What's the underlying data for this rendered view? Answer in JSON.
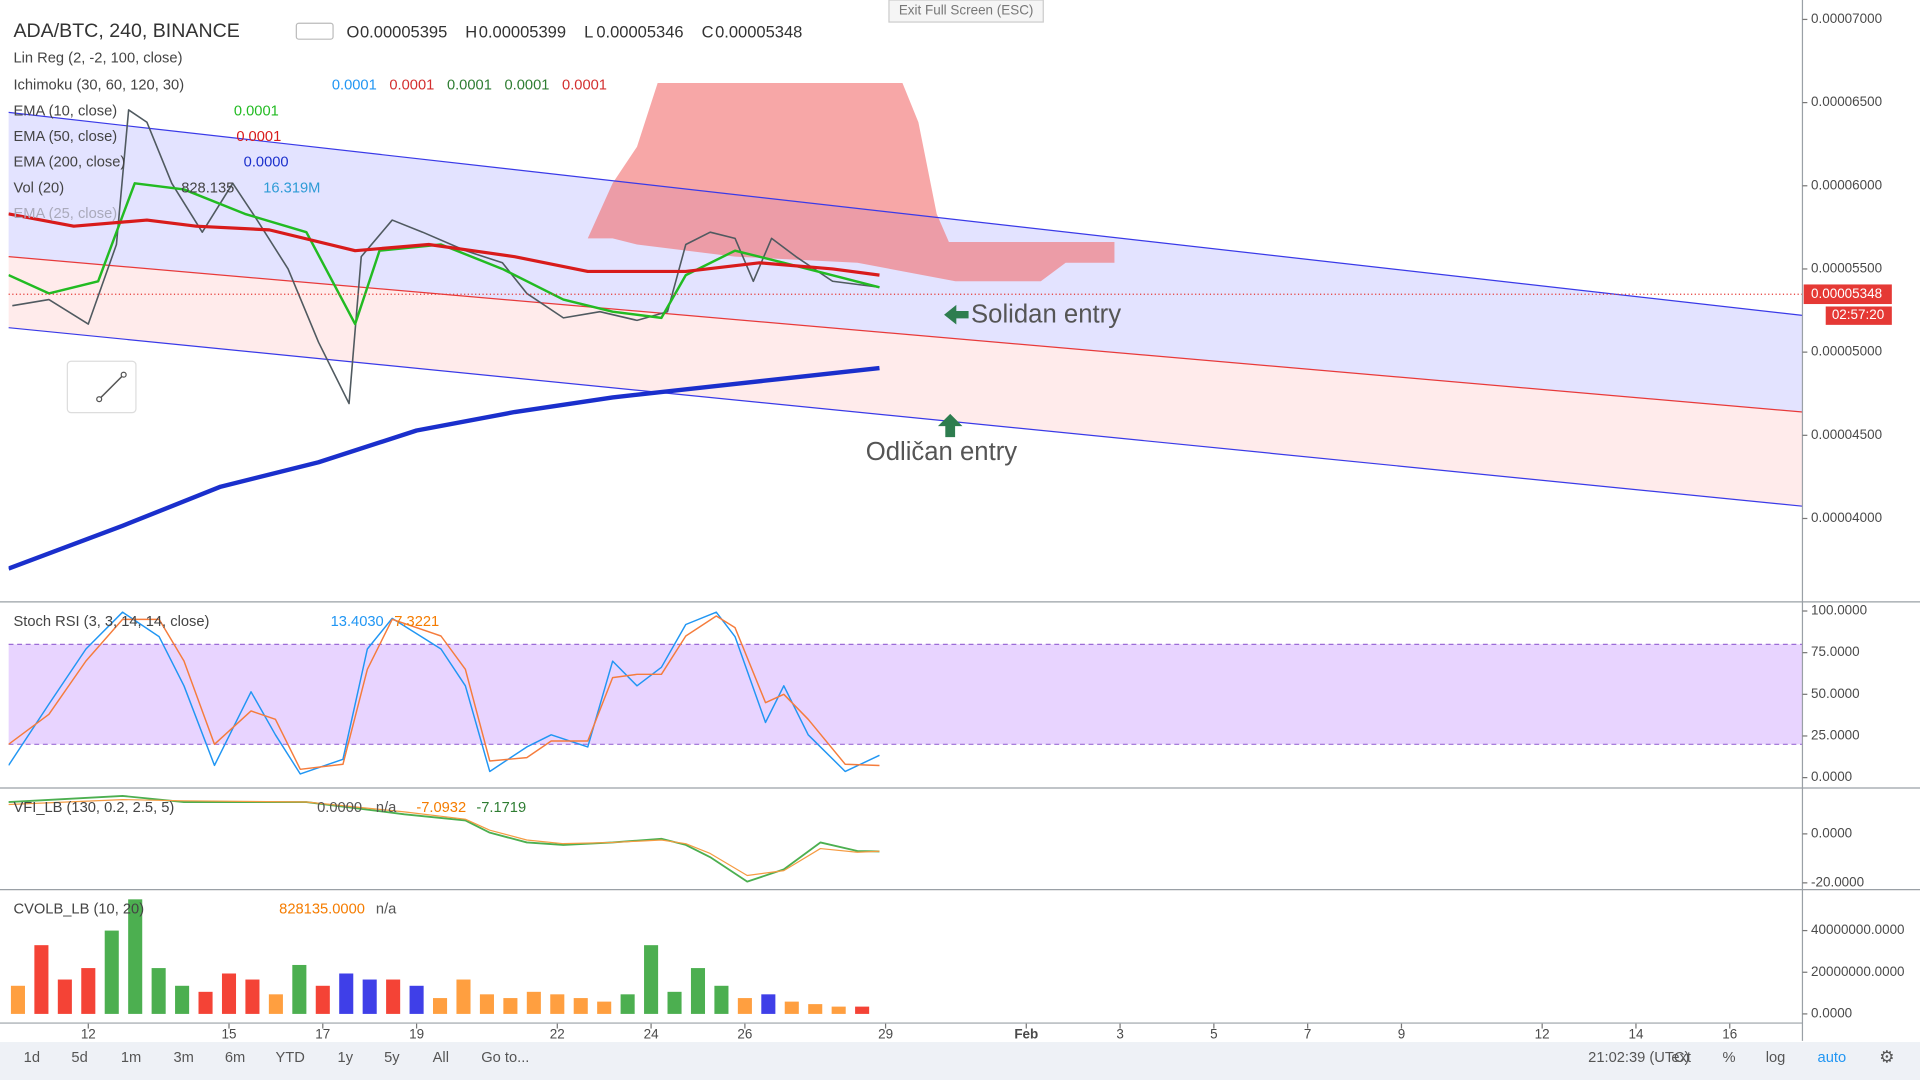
{
  "header": {
    "exit_fullscreen": "Exit Full Screen (ESC)"
  },
  "toolbar": {
    "periods": [
      "1d",
      "5d",
      "1m",
      "3m",
      "6m",
      "YTD",
      "1y",
      "5y",
      "All"
    ],
    "goto": "Go to...",
    "clock": "21:02:39 (UTC)",
    "options": [
      "ext",
      "%",
      "log",
      "auto"
    ]
  },
  "chart_data": [
    {
      "type": "line",
      "title": "ADA/BTC, 240, BINANCE",
      "ohlc": [
        {
          "key": "O",
          "value": "0.00005395"
        },
        {
          "key": "H",
          "value": "0.00005399"
        },
        {
          "key": "L",
          "value": "0.00005346"
        },
        {
          "key": "C",
          "value": "0.00005348"
        }
      ],
      "xlim": [
        10.3,
        48.55
      ],
      "xticks": [
        12,
        15,
        17,
        19,
        22,
        24,
        26,
        29,
        {
          "value": 32,
          "label": "Feb"
        },
        {
          "value": 34,
          "label": "3"
        },
        {
          "value": 36,
          "label": "5"
        },
        {
          "value": 38,
          "label": "7"
        },
        {
          "value": 40,
          "label": "9"
        },
        {
          "value": 43,
          "label": "12"
        },
        {
          "value": 45,
          "label": "14"
        },
        {
          "value": 47,
          "label": "16"
        }
      ],
      "ylim": [
        3.51e-05,
        7.08e-05
      ],
      "yticks": [
        {
          "value": 7e-05,
          "label": "0.00007000"
        },
        {
          "value": 6.5e-05,
          "label": "0.00006500"
        },
        {
          "value": 6e-05,
          "label": "0.00006000"
        },
        {
          "value": 5.5e-05,
          "label": "0.00005500"
        },
        {
          "value": 5e-05,
          "label": "0.00005000"
        },
        {
          "value": 4.5e-05,
          "label": "0.00004500"
        },
        {
          "value": 4e-05,
          "label": "0.00004000"
        }
      ],
      "grid": false,
      "lin_reg": {
        "name": "Lin Reg (2, -2, 100, close)",
        "upper": {
          "x": [
            10.3,
            48.55
          ],
          "values": [
            6.441e-05,
            5.221e-05
          ],
          "color": "#3a3ae8"
        },
        "middle": {
          "x": [
            10.3,
            48.55
          ],
          "values": [
            5.574e-05,
            4.64e-05
          ],
          "color": "#e83a3a"
        },
        "lower": {
          "x": [
            10.3,
            48.55
          ],
          "values": [
            5.147e-05,
            4.074e-05
          ],
          "color": "#3a3ae8"
        }
      },
      "ichimoku": {
        "name": "Ichimoku (30, 60, 120, 30)",
        "legend_values": [
          "0.0001",
          "0.0001",
          "0.0001",
          "0.0001",
          "0.0001"
        ],
        "legend_colors": [
          "#2196f3",
          "#d32f2f",
          "#2e7d32",
          "#2e7d32",
          "#d32f2f"
        ],
        "cloud_top": {
          "x": [
            22.65,
            23.18,
            23.7,
            24.14,
            29.36,
            29.7,
            30.09,
            30.35,
            33.88
          ],
          "values": [
            5.684e-05,
            6.015e-05,
            6.235e-05,
            6.618e-05,
            6.618e-05,
            6.382e-05,
            5.831e-05,
            5.662e-05,
            5.662e-05
          ]
        },
        "cloud_bottom": {
          "x": [
            22.65,
            23.18,
            23.7,
            25.79,
            28.4,
            30.49,
            32.31,
            32.84,
            33.88
          ],
          "values": [
            5.684e-05,
            5.684e-05,
            5.647e-05,
            5.574e-05,
            5.537e-05,
            5.426e-05,
            5.426e-05,
            5.537e-05,
            5.537e-05
          ]
        },
        "color": "#f26d6d"
      },
      "series": [
        {
          "color": "#505a60",
          "width": 1.3,
          "x": [
            10.38,
            11.16,
            12,
            12.6,
            12.86,
            13.25,
            13.78,
            14.43,
            15.08,
            15.6,
            16.26,
            16.91,
            17.56,
            17.82,
            18.48,
            19.13,
            20.04,
            20.83,
            21.35,
            22.13,
            22.91,
            23.7,
            24.35,
            24.74,
            25.26,
            25.79,
            26.18,
            26.57,
            27.09,
            27.87,
            28.87
          ],
          "values": [
            5.279e-05,
            5.316e-05,
            5.169e-05,
            5.647e-05,
            6.456e-05,
            6.382e-05,
            6.015e-05,
            5.721e-05,
            6.015e-05,
            5.794e-05,
            5.5e-05,
            5.059e-05,
            4.691e-05,
            5.574e-05,
            5.794e-05,
            5.721e-05,
            5.61e-05,
            5.537e-05,
            5.353e-05,
            5.206e-05,
            5.243e-05,
            5.191e-05,
            5.243e-05,
            5.647e-05,
            5.721e-05,
            5.684e-05,
            5.426e-05,
            5.684e-05,
            5.574e-05,
            5.426e-05,
            5.39e-05
          ]
        },
        {
          "name": "EMA (10, close)",
          "legend_value": "0.0001",
          "color": "#22bb22",
          "width": 2,
          "x": [
            10.3,
            11.16,
            12.21,
            12.99,
            14.04,
            15.34,
            16.65,
            17.69,
            18.21,
            19.52,
            20.83,
            22.13,
            23.18,
            24.22,
            24.74,
            25.79,
            26.83,
            28.87
          ],
          "values": [
            5.463e-05,
            5.353e-05,
            5.426e-05,
            6.015e-05,
            5.978e-05,
            5.831e-05,
            5.721e-05,
            5.169e-05,
            5.61e-05,
            5.647e-05,
            5.5e-05,
            5.316e-05,
            5.243e-05,
            5.206e-05,
            5.463e-05,
            5.61e-05,
            5.537e-05,
            5.39e-05
          ]
        },
        {
          "name": "EMA (50, close)",
          "legend_value": "0.0001",
          "color": "#d81b1b",
          "width": 2.6,
          "x": [
            10.3,
            11.69,
            13.25,
            14.3,
            15.86,
            17.69,
            19.26,
            21.09,
            22.65,
            24.74,
            26.31,
            27.87,
            28.87
          ],
          "values": [
            5.831e-05,
            5.757e-05,
            5.794e-05,
            5.757e-05,
            5.735e-05,
            5.61e-05,
            5.647e-05,
            5.574e-05,
            5.485e-05,
            5.485e-05,
            5.537e-05,
            5.5e-05,
            5.463e-05
          ]
        },
        {
          "name": "EMA (200, close)",
          "legend_value": "0.0000",
          "color": "#1a2fcc",
          "width": 3.6,
          "x": [
            10.3,
            12.73,
            14.82,
            16.91,
            19,
            21.09,
            23.18,
            25.79,
            28.87
          ],
          "values": [
            3.699e-05,
            3.956e-05,
            4.191e-05,
            4.338e-05,
            4.529e-05,
            4.64e-05,
            4.728e-05,
            4.809e-05,
            4.904e-05
          ]
        }
      ],
      "vol": {
        "name": "Vol (20)",
        "legend_values": [
          "828.135",
          "16.319M"
        ]
      },
      "faded_legend": "EMA (25, close)",
      "last_price": {
        "value": 5.348e-05,
        "label": "0.00005348"
      },
      "countdown": "02:57:20",
      "annotations": [
        "Solidan entry",
        "Odličan entry"
      ]
    },
    {
      "type": "line",
      "title": "Stoch RSI (3, 3, 14, 14, close)",
      "legend_values": [
        "13.4030",
        "7.3221"
      ],
      "xlim": [
        10.3,
        48.55
      ],
      "ylim": [
        -5.1,
        104.4
      ],
      "yticks": [
        {
          "value": 100,
          "label": "100.0000"
        },
        {
          "value": 75,
          "label": "75.0000"
        },
        {
          "value": 50,
          "label": "50.0000"
        },
        {
          "value": 25,
          "label": "25.0000"
        },
        {
          "value": 0,
          "label": "0.0000"
        }
      ],
      "band": [
        20,
        80
      ],
      "band_color": "#d9b8ff",
      "series": [
        {
          "color": "#2196f3",
          "width": 1.2,
          "x": [
            10.3,
            11.16,
            11.95,
            12.73,
            13.51,
            14.04,
            14.69,
            15.47,
            15.99,
            16.52,
            17.43,
            17.95,
            18.48,
            19.52,
            20.04,
            20.56,
            21.35,
            21.87,
            22.65,
            23.18,
            23.7,
            24.22,
            24.74,
            25.39,
            25.79,
            26.44,
            26.83,
            27.35,
            28.14,
            28.87
          ],
          "values": [
            7.35,
            44.1,
            77.2,
            99.3,
            84.6,
            55.1,
            7.35,
            51.5,
            25.7,
            2.2,
            11,
            77.2,
            95.6,
            77.2,
            55.1,
            3.7,
            18.4,
            25.7,
            18.4,
            69.9,
            55.1,
            66.2,
            91.9,
            99.3,
            84.6,
            33.1,
            55.1,
            25.7,
            3.7,
            13.4
          ]
        },
        {
          "color": "#f57c3c",
          "width": 1.2,
          "x": [
            10.3,
            11.16,
            11.95,
            12.73,
            13.51,
            14.04,
            14.69,
            15.47,
            15.99,
            16.52,
            17.43,
            17.95,
            18.48,
            19.52,
            20.04,
            20.56,
            21.35,
            21.87,
            22.65,
            23.18,
            23.7,
            24.22,
            24.74,
            25.39,
            25.79,
            26.44,
            26.83,
            27.35,
            28.14,
            28.87
          ],
          "values": [
            20,
            38,
            70,
            95,
            95,
            70,
            20,
            40,
            35,
            5,
            8,
            65,
            95,
            85,
            65,
            10,
            12,
            22,
            22,
            60,
            62,
            62,
            85,
            97,
            90,
            45,
            50,
            35,
            8,
            7.3
          ]
        }
      ]
    },
    {
      "type": "line",
      "title": "VFI_LB (130, 0.2, 2.5, 5)",
      "legend_values": [
        "0.0000",
        "n/a",
        "-7.0932",
        "-7.1719"
      ],
      "legend_colors": [
        "#555555",
        "#555555",
        "#f57c00",
        "#2e7d32"
      ],
      "xlim": [
        10.3,
        48.55
      ],
      "ylim": [
        -22,
        18
      ],
      "yticks": [
        {
          "value": 0,
          "label": "0.0000"
        },
        {
          "value": -20,
          "label": "-20.0000"
        }
      ],
      "series": [
        {
          "color": "#4caf50",
          "width": 1.5,
          "x": [
            10.3,
            12.73,
            14.04,
            16.65,
            18.74,
            20.04,
            20.56,
            21.35,
            22.13,
            23.18,
            24.22,
            24.74,
            25.26,
            26.05,
            26.83,
            27.61,
            28.4,
            28.87
          ],
          "values": [
            13,
            15.5,
            13,
            13,
            8,
            5.5,
            0.5,
            -3.5,
            -4.5,
            -3.5,
            -2,
            -4.5,
            -9.5,
            -19.5,
            -14.5,
            -3.5,
            -7,
            -7.17
          ]
        },
        {
          "color": "#f59b42",
          "width": 1,
          "x": [
            10.3,
            12.73,
            14.04,
            16.65,
            18.74,
            20.04,
            20.56,
            21.35,
            22.13,
            23.18,
            24.22,
            24.74,
            25.26,
            26.05,
            26.83,
            27.61,
            28.4,
            28.87
          ],
          "values": [
            12,
            14,
            13.5,
            13,
            9,
            6,
            1.5,
            -2.5,
            -4,
            -3.5,
            -2.5,
            -4,
            -8,
            -17,
            -15,
            -6,
            -7.5,
            -7.09
          ]
        }
      ]
    },
    {
      "type": "bar",
      "title": "CVOLB_LB (10, 20)",
      "legend_values": [
        "828135.0000",
        "n/a"
      ],
      "legend_colors": [
        "#f57c00",
        "#555555"
      ],
      "xlim": [
        10.3,
        48.55
      ],
      "ylim": [
        -4100000,
        58800000
      ],
      "yticks": [
        {
          "value": 40000000,
          "label": "40000000.0000"
        },
        {
          "value": 20000000,
          "label": "20000000.0000"
        },
        {
          "value": 0,
          "label": "0.0000"
        }
      ],
      "x": [
        10.5,
        11,
        11.5,
        12,
        12.5,
        13,
        13.5,
        14,
        14.5,
        15,
        15.5,
        16,
        16.5,
        17,
        17.5,
        18,
        18.5,
        19,
        19.5,
        20,
        20.5,
        21,
        21.5,
        22,
        22.5,
        23,
        23.5,
        24,
        24.5,
        25,
        25.5,
        26,
        26.5,
        27,
        27.5,
        28,
        28.5
      ],
      "values": [
        13500000,
        33000000,
        16500000,
        22000000,
        40000000,
        55000000,
        22000000,
        13500000,
        10600000,
        19400000,
        16500000,
        9400000,
        23500000,
        13500000,
        19400000,
        16500000,
        16500000,
        13500000,
        7600000,
        16500000,
        9400000,
        7600000,
        10600000,
        9400000,
        7600000,
        5900000,
        9400000,
        33000000,
        10600000,
        22000000,
        13500000,
        7600000,
        9400000,
        5900000,
        4700000,
        3500000,
        3500000
      ],
      "colors": [
        "#ff9f40",
        "#f44336",
        "#f44336",
        "#f44336",
        "#4caf50",
        "#4caf50",
        "#4caf50",
        "#4caf50",
        "#f44336",
        "#f44336",
        "#f44336",
        "#ff9f40",
        "#4caf50",
        "#f44336",
        "#3f3fe8",
        "#3f3fe8",
        "#f44336",
        "#3f3fe8",
        "#ff9f40",
        "#ff9f40",
        "#ff9f40",
        "#ff9f40",
        "#ff9f40",
        "#ff9f40",
        "#ff9f40",
        "#ff9f40",
        "#4caf50",
        "#4caf50",
        "#4caf50",
        "#4caf50",
        "#4caf50",
        "#ff9f40",
        "#3f3fe8",
        "#ff9f40",
        "#ff9f40",
        "#ff9f40",
        "#f44336"
      ]
    }
  ]
}
